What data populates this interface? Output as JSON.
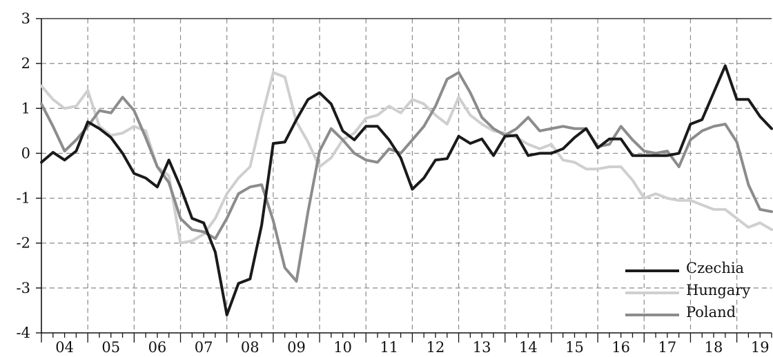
{
  "chart_data": {
    "type": "line",
    "title": "",
    "xlabel": "",
    "ylabel": "",
    "xlim": [
      2004.0,
      2019.75
    ],
    "ylim": [
      -4,
      3
    ],
    "y_ticks": [
      "3",
      "2",
      "1",
      "0",
      "-1",
      "-2",
      "-3",
      "-4"
    ],
    "x_tick_labels": [
      "04",
      "05",
      "06",
      "07",
      "08",
      "09",
      "10",
      "11",
      "12",
      "13",
      "14",
      "15",
      "16",
      "17",
      "18",
      "19"
    ],
    "grid": "dashed vertical at year boundaries, dashed horizontal at integer values",
    "legend_position": "bottom-right",
    "series": [
      {
        "name": "Czechia",
        "color": "#1a1a1a",
        "x": [
          2004.0,
          2004.25,
          2004.5,
          2004.75,
          2005.0,
          2005.25,
          2005.5,
          2005.75,
          2006.0,
          2006.25,
          2006.5,
          2006.75,
          2007.0,
          2007.25,
          2007.5,
          2007.75,
          2008.0,
          2008.25,
          2008.5,
          2008.75,
          2009.0,
          2009.25,
          2009.5,
          2009.75,
          2010.0,
          2010.25,
          2010.5,
          2010.75,
          2011.0,
          2011.25,
          2011.5,
          2011.75,
          2012.0,
          2012.25,
          2012.5,
          2012.75,
          2013.0,
          2013.25,
          2013.5,
          2013.75,
          2014.0,
          2014.25,
          2014.5,
          2014.75,
          2015.0,
          2015.25,
          2015.5,
          2015.75,
          2016.0,
          2016.25,
          2016.5,
          2016.75,
          2017.0,
          2017.25,
          2017.5,
          2017.75,
          2018.0,
          2018.25,
          2018.5,
          2018.75,
          2019.0,
          2019.25,
          2019.5,
          2019.75
        ],
        "values": [
          -0.2,
          0.02,
          -0.15,
          0.05,
          0.7,
          0.55,
          0.35,
          0.0,
          -0.45,
          -0.55,
          -0.75,
          -0.15,
          -0.75,
          -1.45,
          -1.55,
          -2.2,
          -3.6,
          -2.9,
          -2.8,
          -1.6,
          0.22,
          0.25,
          0.75,
          1.2,
          1.35,
          1.1,
          0.5,
          0.3,
          0.6,
          0.6,
          0.3,
          -0.1,
          -0.8,
          -0.55,
          -0.15,
          -0.12,
          0.38,
          0.22,
          0.32,
          -0.05,
          0.38,
          0.4,
          -0.05,
          0.0,
          0.0,
          0.1,
          0.35,
          0.55,
          0.12,
          0.32,
          0.32,
          -0.05,
          -0.05,
          -0.05,
          -0.05,
          0.0,
          0.65,
          0.75,
          1.35,
          1.95,
          1.2,
          1.2,
          0.82,
          0.55
        ]
      },
      {
        "name": "Hungary",
        "color": "#cfcfcf",
        "x": [
          2004.0,
          2004.25,
          2004.5,
          2004.75,
          2005.0,
          2005.25,
          2005.5,
          2005.75,
          2006.0,
          2006.25,
          2006.5,
          2006.75,
          2007.0,
          2007.25,
          2007.5,
          2007.75,
          2008.0,
          2008.25,
          2008.5,
          2008.75,
          2009.0,
          2009.25,
          2009.5,
          2009.75,
          2010.0,
          2010.25,
          2010.5,
          2010.75,
          2011.0,
          2011.25,
          2011.5,
          2011.75,
          2012.0,
          2012.25,
          2012.5,
          2012.75,
          2013.0,
          2013.25,
          2013.5,
          2013.75,
          2014.0,
          2014.25,
          2014.5,
          2014.75,
          2015.0,
          2015.25,
          2015.5,
          2015.75,
          2016.0,
          2016.25,
          2016.5,
          2016.75,
          2017.0,
          2017.25,
          2017.5,
          2017.75,
          2018.0,
          2018.25,
          2018.5,
          2018.75,
          2019.0,
          2019.25,
          2019.5,
          2019.75
        ],
        "values": [
          1.5,
          1.2,
          1.0,
          1.05,
          1.4,
          0.6,
          0.4,
          0.45,
          0.6,
          0.5,
          -0.3,
          -0.5,
          -2.0,
          -1.95,
          -1.8,
          -1.45,
          -0.9,
          -0.55,
          -0.3,
          0.8,
          1.8,
          1.7,
          0.7,
          0.25,
          -0.3,
          -0.1,
          0.3,
          0.45,
          0.78,
          0.85,
          1.05,
          0.9,
          1.2,
          1.1,
          0.85,
          0.65,
          1.25,
          0.85,
          0.65,
          0.5,
          0.45,
          0.35,
          0.2,
          0.1,
          0.2,
          -0.15,
          -0.2,
          -0.35,
          -0.35,
          -0.3,
          -0.3,
          -0.6,
          -1.0,
          -0.9,
          -1.0,
          -1.05,
          -1.05,
          -1.15,
          -1.25,
          -1.25,
          -1.45,
          -1.65,
          -1.55,
          -1.7
        ]
      },
      {
        "name": "Poland",
        "color": "#8c8c8c",
        "x": [
          2004.0,
          2004.25,
          2004.5,
          2004.75,
          2005.0,
          2005.25,
          2005.5,
          2005.75,
          2006.0,
          2006.25,
          2006.5,
          2006.75,
          2007.0,
          2007.25,
          2007.5,
          2007.75,
          2008.0,
          2008.25,
          2008.5,
          2008.75,
          2009.0,
          2009.25,
          2009.5,
          2009.75,
          2010.0,
          2010.25,
          2010.5,
          2010.75,
          2011.0,
          2011.25,
          2011.5,
          2011.75,
          2012.0,
          2012.25,
          2012.5,
          2012.75,
          2013.0,
          2013.25,
          2013.5,
          2013.75,
          2014.0,
          2014.25,
          2014.5,
          2014.75,
          2015.0,
          2015.25,
          2015.5,
          2015.75,
          2016.0,
          2016.25,
          2016.5,
          2016.75,
          2017.0,
          2017.25,
          2017.5,
          2017.75,
          2018.0,
          2018.25,
          2018.5,
          2018.75,
          2019.0,
          2019.25,
          2019.5,
          2019.75
        ],
        "values": [
          1.1,
          0.6,
          0.05,
          0.3,
          0.6,
          0.95,
          0.9,
          1.25,
          0.95,
          0.35,
          -0.3,
          -0.65,
          -1.45,
          -1.7,
          -1.75,
          -1.9,
          -1.45,
          -0.9,
          -0.75,
          -0.7,
          -1.5,
          -2.55,
          -2.85,
          -1.3,
          0.05,
          0.55,
          0.3,
          0.0,
          -0.15,
          -0.2,
          0.1,
          0.0,
          0.3,
          0.6,
          1.05,
          1.65,
          1.8,
          1.35,
          0.8,
          0.55,
          0.4,
          0.55,
          0.8,
          0.5,
          0.55,
          0.6,
          0.55,
          0.55,
          0.15,
          0.2,
          0.6,
          0.3,
          0.05,
          0.0,
          0.05,
          -0.3,
          0.3,
          0.5,
          0.6,
          0.65,
          0.25,
          -0.7,
          -1.25,
          -1.3
        ]
      }
    ]
  }
}
